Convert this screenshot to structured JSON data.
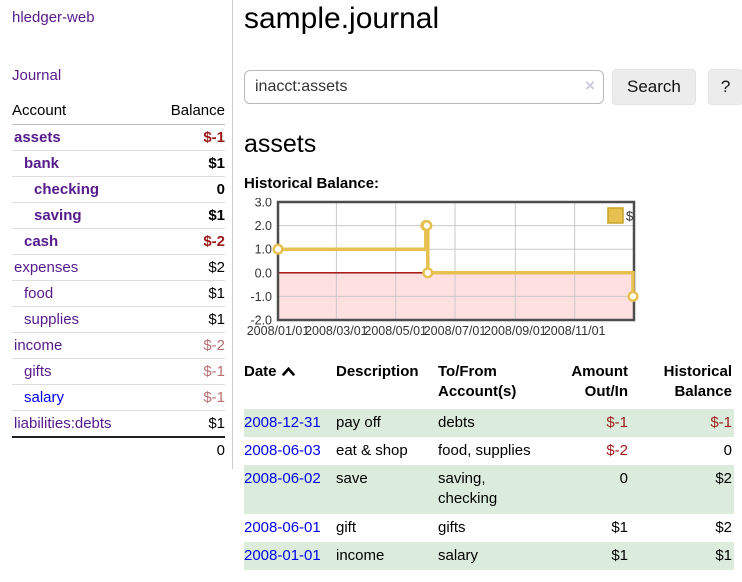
{
  "sidebar": {
    "brand": "hledger-web",
    "nav_journal": "Journal",
    "accounts_table": {
      "headers": {
        "account": "Account",
        "balance": "Balance"
      },
      "rows": [
        {
          "name": "assets",
          "indent": 1,
          "bold": true,
          "blue": false,
          "balance": "$-1",
          "balance_class": "neg-strong"
        },
        {
          "name": "bank",
          "indent": 2,
          "bold": true,
          "blue": false,
          "balance": "$1",
          "balance_class": ""
        },
        {
          "name": "checking",
          "indent": 3,
          "bold": true,
          "blue": false,
          "balance": "0",
          "balance_class": ""
        },
        {
          "name": "saving",
          "indent": 3,
          "bold": true,
          "blue": false,
          "balance": "$1",
          "balance_class": ""
        },
        {
          "name": "cash",
          "indent": 2,
          "bold": true,
          "blue": false,
          "balance": "$-2",
          "balance_class": "neg-strong"
        },
        {
          "name": "expenses",
          "indent": 1,
          "bold": false,
          "blue": false,
          "balance": "$2",
          "balance_class": ""
        },
        {
          "name": "food",
          "indent": 2,
          "bold": false,
          "blue": false,
          "balance": "$1",
          "balance_class": ""
        },
        {
          "name": "supplies",
          "indent": 2,
          "bold": false,
          "blue": false,
          "balance": "$1",
          "balance_class": ""
        },
        {
          "name": "income",
          "indent": 1,
          "bold": false,
          "blue": false,
          "balance": "$-2",
          "balance_class": "neg-light"
        },
        {
          "name": "gifts",
          "indent": 2,
          "bold": false,
          "blue": false,
          "balance": "$-1",
          "balance_class": "neg-light"
        },
        {
          "name": "salary",
          "indent": 2,
          "bold": false,
          "blue": true,
          "balance": "$-1",
          "balance_class": "neg-light"
        },
        {
          "name": "liabilities:debts",
          "indent": 1,
          "bold": false,
          "blue": false,
          "balance": "$1",
          "balance_class": ""
        }
      ],
      "total": "0"
    }
  },
  "main": {
    "title": "sample.journal",
    "search": {
      "value": "inacct:assets",
      "clear_icon": "×",
      "button_label": "Search",
      "help_label": "?"
    },
    "account_heading": "assets",
    "chart_label": "Historical Balance:"
  },
  "chart_data": {
    "type": "line",
    "step": true,
    "title": "Historical Balance",
    "series": [
      {
        "name": "$",
        "color": "#e7c14f",
        "points": [
          [
            "2008-01-01",
            1
          ],
          [
            "2008-06-01",
            2
          ],
          [
            "2008-06-02",
            2
          ],
          [
            "2008-06-03",
            0
          ],
          [
            "2008-12-31",
            -1
          ]
        ]
      }
    ],
    "x_range": [
      "2008-01-01",
      "2009-01-01"
    ],
    "x_ticks": [
      "2008/01/01",
      "2008/03/01",
      "2008/05/01",
      "2008/07/01",
      "2008/09/01",
      "2008/11/01"
    ],
    "y_ticks": [
      3.0,
      2.0,
      1.0,
      0.0,
      -1.0,
      -2.0
    ],
    "ylim": [
      -2,
      3
    ],
    "grid": true,
    "legend_position": "top-right",
    "negative_region_color": "#ffe0e0",
    "zero_line_color": "#990000",
    "grid_color": "#c9c9c9",
    "border_color": "#4d4d4d"
  },
  "register": {
    "headers": {
      "date": "Date",
      "description": "Description",
      "accounts": "To/From Account(s)",
      "amount": "Amount Out/In",
      "balance": "Historical Balance"
    },
    "sort_icon": "chevron-up",
    "rows": [
      {
        "date": "2008-12-31",
        "description": "pay off",
        "accounts": "debts",
        "amount": "$-1",
        "amount_class": "neg-strong",
        "balance": "$-1",
        "balance_class": "neg-strong"
      },
      {
        "date": "2008-06-03",
        "description": "eat & shop",
        "accounts": "food, supplies",
        "amount": "$-2",
        "amount_class": "neg-strong",
        "balance": "0",
        "balance_class": ""
      },
      {
        "date": "2008-06-02",
        "description": "save",
        "accounts": "saving, checking",
        "amount": "0",
        "amount_class": "",
        "balance": "$2",
        "balance_class": ""
      },
      {
        "date": "2008-06-01",
        "description": "gift",
        "accounts": "gifts",
        "amount": "$1",
        "amount_class": "",
        "balance": "$2",
        "balance_class": ""
      },
      {
        "date": "2008-01-01",
        "description": "income",
        "accounts": "salary",
        "amount": "$1",
        "amount_class": "",
        "balance": "$1",
        "balance_class": ""
      }
    ]
  }
}
